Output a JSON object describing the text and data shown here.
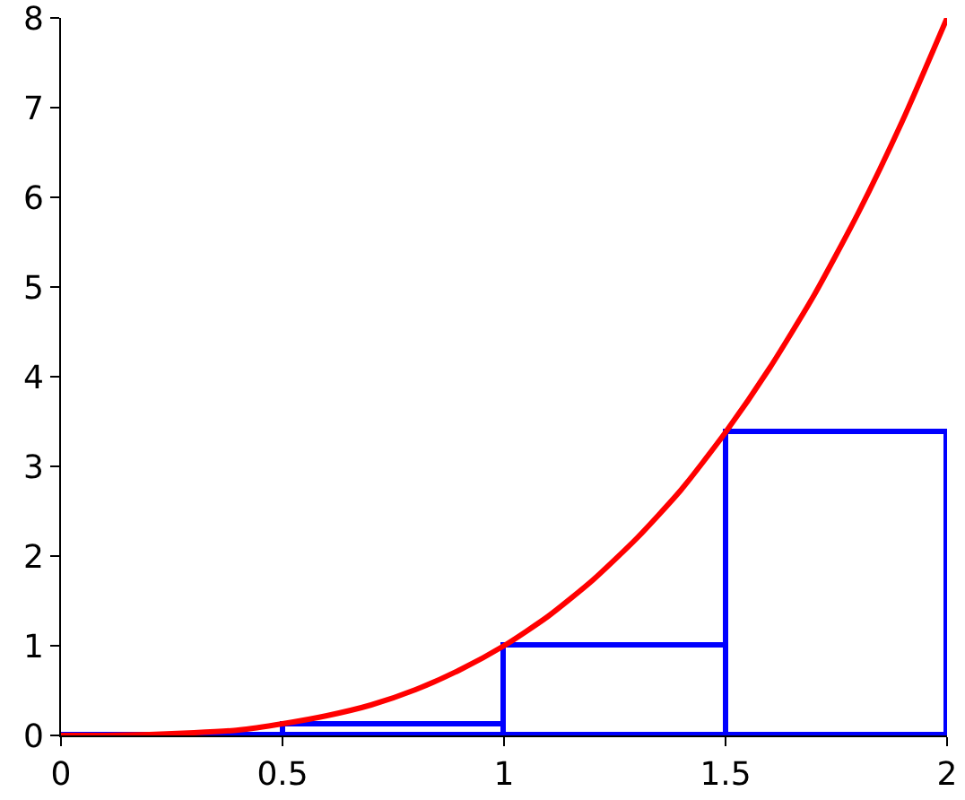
{
  "chart_data": {
    "type": "bar",
    "xlim": [
      0,
      2
    ],
    "xticks": [
      0,
      0.5,
      1,
      1.5,
      2
    ],
    "ylim": [
      0,
      8
    ],
    "yticks": [
      0,
      1,
      2,
      3,
      4,
      5,
      6,
      7,
      8
    ],
    "grid": false,
    "marker": "none",
    "line_style": "solid",
    "series": [
      {
        "color": "#0000ff",
        "x": [
          0.25,
          0.75,
          1.25,
          1.75
        ],
        "values": [
          0,
          0.125,
          1,
          3.375
        ]
      },
      {
        "type": "line",
        "color": "#ff0000",
        "x": [
          0,
          0.1,
          0.2,
          0.3,
          0.4,
          0.5,
          0.6,
          0.7,
          0.8,
          0.9,
          1,
          1.1,
          1.2,
          1.3,
          1.4,
          1.5,
          1.6,
          1.7,
          1.8,
          1.9,
          2
        ],
        "values": [
          0,
          0,
          0.01,
          0.03,
          0.06,
          0.13,
          0.22,
          0.34,
          0.51,
          0.73,
          1,
          1.33,
          1.73,
          2.2,
          2.74,
          3.38,
          4.1,
          4.91,
          5.83,
          6.86,
          8
        ]
      }
    ]
  }
}
